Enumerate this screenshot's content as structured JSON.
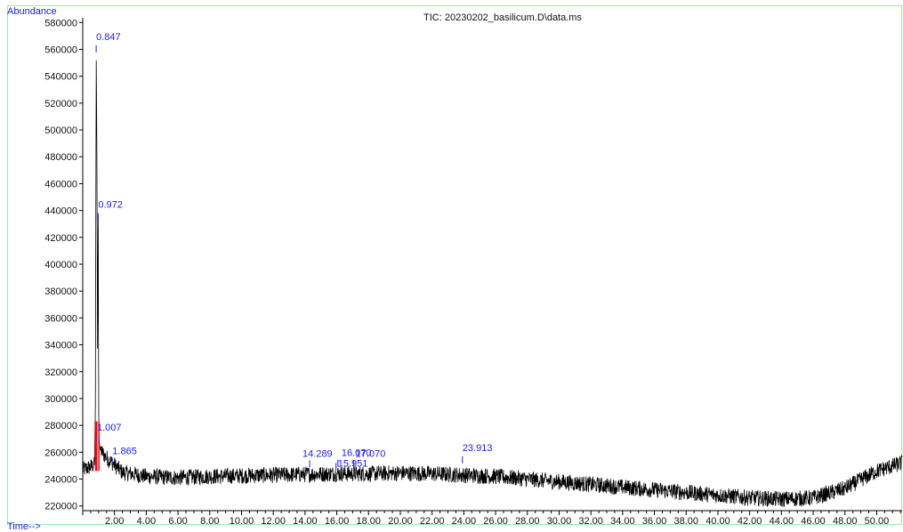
{
  "chart_data": {
    "type": "line",
    "title": "TIC: 20230202_basilicum.D\\data.ms",
    "ylabel": "Abundance",
    "xlabel": "Time-->",
    "xlim": [
      0.0,
      51.6
    ],
    "ylim": [
      216500,
      583500
    ],
    "x_ticks": [
      "2.00",
      "4.00",
      "6.00",
      "8.00",
      "10.00",
      "12.00",
      "14.00",
      "16.00",
      "18.00",
      "20.00",
      "22.00",
      "24.00",
      "26.00",
      "28.00",
      "30.00",
      "32.00",
      "34.00",
      "36.00",
      "38.00",
      "40.00",
      "42.00",
      "44.00",
      "46.00",
      "48.00",
      "50.00"
    ],
    "y_ticks": [
      "220000",
      "240000",
      "260000",
      "280000",
      "300000",
      "320000",
      "340000",
      "360000",
      "380000",
      "400000",
      "420000",
      "440000",
      "460000",
      "480000",
      "500000",
      "520000",
      "540000",
      "560000",
      "580000"
    ],
    "peaks": [
      {
        "label": "0.847",
        "x": 0.847,
        "y": 563000
      },
      {
        "label": "0.972",
        "x": 0.972,
        "y": 438000
      },
      {
        "label": "1.007",
        "x": 1.007,
        "y": 272000
      },
      {
        "label": "1.865",
        "x": 1.865,
        "y": 256000
      },
      {
        "label": "14.289",
        "x": 14.289,
        "y": 254000
      },
      {
        "label": "15.951",
        "x": 15.951,
        "y": 252000
      },
      {
        "label": "16.070",
        "x": 16.07,
        "y": 254500
      },
      {
        "label": "17.070",
        "x": 17.07,
        "y": 254000
      },
      {
        "label": "23.913",
        "x": 23.913,
        "y": 257000
      }
    ],
    "baseline": [
      [
        0.0,
        247000
      ],
      [
        0.5,
        249000
      ],
      [
        0.75,
        251000
      ],
      [
        0.8,
        300000
      ],
      [
        0.847,
        563000
      ],
      [
        0.9,
        470000
      ],
      [
        0.93,
        330000
      ],
      [
        0.972,
        438000
      ],
      [
        1.007,
        272000
      ],
      [
        1.1,
        262000
      ],
      [
        1.4,
        257000
      ],
      [
        1.865,
        252000
      ],
      [
        2.5,
        245000
      ],
      [
        4,
        242000
      ],
      [
        6,
        241000
      ],
      [
        8,
        242000
      ],
      [
        10,
        242500
      ],
      [
        12,
        243000
      ],
      [
        14,
        243500
      ],
      [
        16,
        244000
      ],
      [
        18,
        244000
      ],
      [
        20,
        244500
      ],
      [
        22,
        244000
      ],
      [
        24,
        243000
      ],
      [
        26,
        242000
      ],
      [
        28,
        240000
      ],
      [
        30,
        238000
      ],
      [
        32,
        236000
      ],
      [
        34,
        234000
      ],
      [
        36,
        232000
      ],
      [
        38,
        230000
      ],
      [
        40,
        228000
      ],
      [
        42,
        226000
      ],
      [
        44,
        225000
      ],
      [
        46,
        226000
      ],
      [
        48,
        233000
      ],
      [
        50,
        246000
      ],
      [
        51.6,
        252000
      ]
    ],
    "noise_amplitude": 6000,
    "grid": false
  },
  "colors": {
    "trace": "#000000",
    "annotation": "#1a1aff",
    "integration": "#ff0000",
    "frame": "#a6e6a6"
  }
}
